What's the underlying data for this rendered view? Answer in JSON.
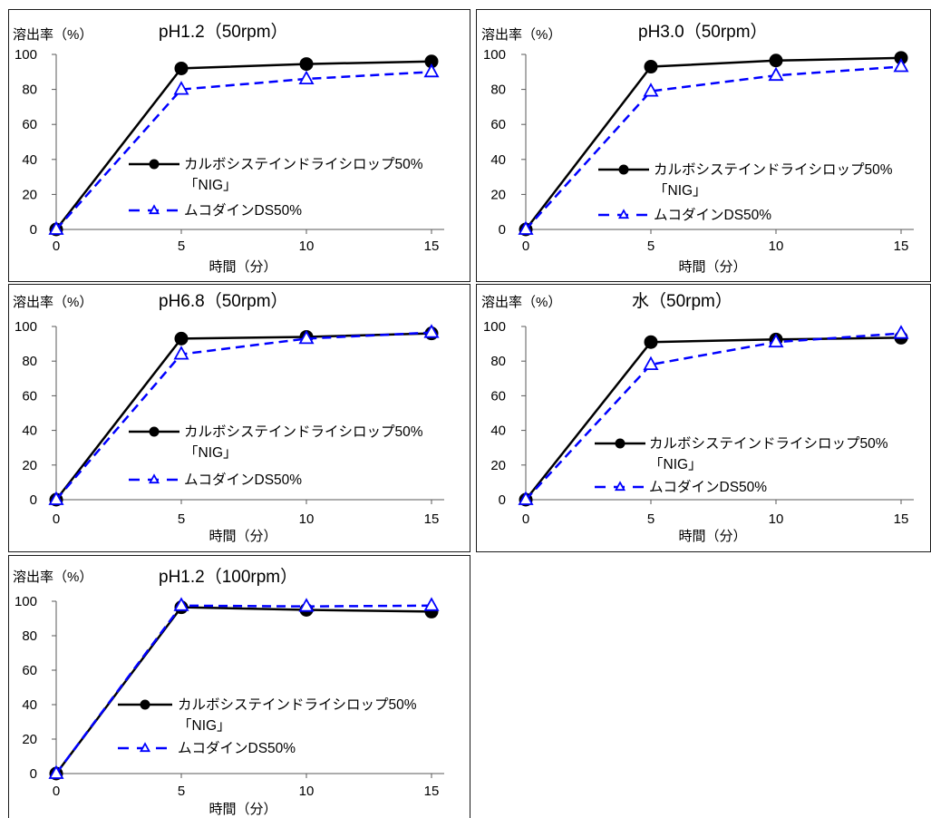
{
  "chart_data": [
    {
      "type": "line",
      "title": "pH1.2（50rpm）",
      "ylabel": "溶出率（%）",
      "xlabel": "時間（分）",
      "x": [
        0,
        5,
        10,
        15
      ],
      "xticks": [
        0,
        5,
        10,
        15
      ],
      "yticks": [
        0,
        20,
        40,
        60,
        80,
        100
      ],
      "xlim": [
        0,
        15
      ],
      "ylim": [
        0,
        100
      ],
      "grid": false,
      "legend": "center-right",
      "series": [
        {
          "name": "カルボシステインドライシロップ50%「NIG」",
          "color": "#000000",
          "line": "solid",
          "marker": "filled-circle",
          "values": [
            0,
            92,
            94.5,
            96
          ]
        },
        {
          "name": "ムコダインDS50%",
          "color": "#0000FF",
          "line": "dashed",
          "marker": "open-triangle",
          "values": [
            0,
            80,
            86,
            90
          ]
        }
      ]
    },
    {
      "type": "line",
      "title": "pH3.0（50rpm）",
      "ylabel": "溶出率（%）",
      "xlabel": "時間（分）",
      "x": [
        0,
        5,
        10,
        15
      ],
      "xticks": [
        0,
        5,
        10,
        15
      ],
      "yticks": [
        0,
        20,
        40,
        60,
        80,
        100
      ],
      "xlim": [
        0,
        15
      ],
      "ylim": [
        0,
        100
      ],
      "grid": false,
      "legend": "center-right",
      "series": [
        {
          "name": "カルボシステインドライシロップ50%「NIG」",
          "color": "#000000",
          "line": "solid",
          "marker": "filled-circle",
          "values": [
            0,
            93,
            96.5,
            98
          ]
        },
        {
          "name": "ムコダインDS50%",
          "color": "#0000FF",
          "line": "dashed",
          "marker": "open-triangle",
          "values": [
            0,
            79,
            88,
            93
          ]
        }
      ]
    },
    {
      "type": "line",
      "title": "pH6.8（50rpm）",
      "ylabel": "溶出率（%）",
      "xlabel": "時間（分）",
      "x": [
        0,
        5,
        10,
        15
      ],
      "xticks": [
        0,
        5,
        10,
        15
      ],
      "yticks": [
        0,
        20,
        40,
        60,
        80,
        100
      ],
      "xlim": [
        0,
        15
      ],
      "ylim": [
        0,
        100
      ],
      "grid": false,
      "legend": "center-right",
      "series": [
        {
          "name": "カルボシステインドライシロップ50%「NIG」",
          "color": "#000000",
          "line": "solid",
          "marker": "filled-circle",
          "values": [
            0,
            93,
            94,
            96
          ]
        },
        {
          "name": "ムコダインDS50%",
          "color": "#0000FF",
          "line": "dashed",
          "marker": "open-triangle",
          "values": [
            0,
            84,
            93,
            96.5
          ]
        }
      ]
    },
    {
      "type": "line",
      "title": "水（50rpm）",
      "ylabel": "溶出率（%）",
      "xlabel": "時間（分）",
      "x": [
        0,
        5,
        10,
        15
      ],
      "xticks": [
        0,
        5,
        10,
        15
      ],
      "yticks": [
        0,
        20,
        40,
        60,
        80,
        100
      ],
      "xlim": [
        0,
        15
      ],
      "ylim": [
        0,
        100
      ],
      "grid": false,
      "legend": "center-right",
      "series": [
        {
          "name": "カルボシステインドライシロップ50%「NIG」",
          "color": "#000000",
          "line": "solid",
          "marker": "filled-circle",
          "values": [
            0,
            91,
            92.5,
            93.5
          ]
        },
        {
          "name": "ムコダインDS50%",
          "color": "#0000FF",
          "line": "dashed",
          "marker": "open-triangle",
          "values": [
            0,
            78,
            91,
            96
          ]
        }
      ]
    },
    {
      "type": "line",
      "title": "pH1.2（100rpm）",
      "ylabel": "溶出率（%）",
      "xlabel": "時間（分）",
      "x": [
        0,
        5,
        10,
        15
      ],
      "xticks": [
        0,
        5,
        10,
        15
      ],
      "yticks": [
        0,
        20,
        40,
        60,
        80,
        100
      ],
      "xlim": [
        0,
        15
      ],
      "ylim": [
        0,
        100
      ],
      "grid": false,
      "legend": "center-right",
      "series": [
        {
          "name": "カルボシステインドライシロップ50%「NIG」",
          "color": "#000000",
          "line": "solid",
          "marker": "filled-circle",
          "values": [
            0,
            96.5,
            95,
            94
          ]
        },
        {
          "name": "ムコダインDS50%",
          "color": "#0000FF",
          "line": "dashed",
          "marker": "open-triangle",
          "values": [
            0,
            97.5,
            97,
            97.5
          ]
        }
      ]
    }
  ]
}
